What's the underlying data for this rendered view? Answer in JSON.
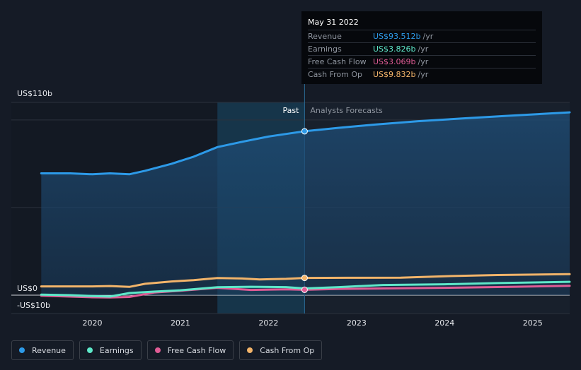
{
  "tooltip": {
    "date": "May 31 2022",
    "rows": [
      {
        "label": "Revenue",
        "value": "US$93.512b",
        "unit": "/yr",
        "color": "#2d9ae8"
      },
      {
        "label": "Earnings",
        "value": "US$3.826b",
        "unit": "/yr",
        "color": "#5ee8c9"
      },
      {
        "label": "Free Cash Flow",
        "value": "US$3.069b",
        "unit": "/yr",
        "color": "#e05c95"
      },
      {
        "label": "Cash From Op",
        "value": "US$9.832b",
        "unit": "/yr",
        "color": "#f2b46a"
      }
    ]
  },
  "legend": [
    {
      "label": "Revenue",
      "color": "#2d9ae8"
    },
    {
      "label": "Earnings",
      "color": "#5ee8c9"
    },
    {
      "label": "Free Cash Flow",
      "color": "#e05c95"
    },
    {
      "label": "Cash From Op",
      "color": "#f2b46a"
    }
  ],
  "chart_data": {
    "type": "line",
    "ylim": [
      -10,
      110
    ],
    "y_tick_labels": [
      {
        "value": 110,
        "label": "US$110b"
      },
      {
        "value": 0,
        "label": "US$0"
      },
      {
        "value": -10,
        "label": "-US$10b"
      }
    ],
    "x_ticks": [
      2020,
      2021,
      2022,
      2023,
      2024,
      2025
    ],
    "xlim": [
      2019.08,
      2025.42
    ],
    "past_label": "Past",
    "forecast_label": "Analysts Forecasts",
    "highlight_start": 2021.42,
    "divider_x": 2022.41,
    "series": [
      {
        "name": "Revenue",
        "color": "#2d9ae8",
        "fill": true,
        "points": [
          [
            2019.42,
            69.5
          ],
          [
            2019.75,
            69.5
          ],
          [
            2020.0,
            69.0
          ],
          [
            2020.2,
            69.5
          ],
          [
            2020.42,
            69.0
          ],
          [
            2020.6,
            71.0
          ],
          [
            2020.9,
            75.0
          ],
          [
            2021.15,
            79.0
          ],
          [
            2021.42,
            84.5
          ],
          [
            2021.7,
            87.5
          ],
          [
            2022.0,
            90.5
          ],
          [
            2022.2,
            92.0
          ],
          [
            2022.41,
            93.512
          ],
          [
            2022.8,
            95.5
          ],
          [
            2023.2,
            97.3
          ],
          [
            2023.7,
            99.3
          ],
          [
            2024.2,
            100.8
          ],
          [
            2024.7,
            102.3
          ],
          [
            2025.42,
            104.3
          ]
        ]
      },
      {
        "name": "Earnings",
        "color": "#5ee8c9",
        "fill": false,
        "points": [
          [
            2019.42,
            0.3
          ],
          [
            2019.75,
            0.0
          ],
          [
            2020.0,
            -0.5
          ],
          [
            2020.2,
            -0.8
          ],
          [
            2020.42,
            1.2
          ],
          [
            2020.7,
            2.0
          ],
          [
            2021.0,
            2.8
          ],
          [
            2021.42,
            4.5
          ],
          [
            2021.8,
            4.8
          ],
          [
            2022.2,
            4.6
          ],
          [
            2022.41,
            3.826
          ],
          [
            2022.8,
            4.6
          ],
          [
            2023.3,
            5.8
          ],
          [
            2024.0,
            6.2
          ],
          [
            2024.6,
            6.9
          ],
          [
            2025.42,
            7.6
          ]
        ]
      },
      {
        "name": "Free Cash Flow",
        "color": "#e05c95",
        "fill": false,
        "points": [
          [
            2019.42,
            -0.3
          ],
          [
            2019.75,
            -0.8
          ],
          [
            2020.0,
            -1.2
          ],
          [
            2020.2,
            -1.3
          ],
          [
            2020.42,
            -1.0
          ],
          [
            2020.7,
            1.5
          ],
          [
            2021.0,
            2.5
          ],
          [
            2021.42,
            4.2
          ],
          [
            2021.8,
            3.0
          ],
          [
            2022.2,
            3.3
          ],
          [
            2022.41,
            3.069
          ],
          [
            2022.8,
            3.6
          ],
          [
            2023.5,
            3.9
          ],
          [
            2024.2,
            4.3
          ],
          [
            2024.8,
            4.8
          ],
          [
            2025.42,
            5.3
          ]
        ]
      },
      {
        "name": "Cash From Op",
        "color": "#f2b46a",
        "fill": false,
        "points": [
          [
            2019.42,
            5.0
          ],
          [
            2019.75,
            5.0
          ],
          [
            2020.0,
            5.0
          ],
          [
            2020.2,
            5.2
          ],
          [
            2020.42,
            4.7
          ],
          [
            2020.6,
            6.5
          ],
          [
            2020.9,
            7.8
          ],
          [
            2021.15,
            8.6
          ],
          [
            2021.42,
            9.8
          ],
          [
            2021.7,
            9.5
          ],
          [
            2021.9,
            9.0
          ],
          [
            2022.2,
            9.3
          ],
          [
            2022.41,
            9.832
          ],
          [
            2022.9,
            9.9
          ],
          [
            2023.5,
            10.0
          ],
          [
            2024.0,
            10.8
          ],
          [
            2024.6,
            11.5
          ],
          [
            2025.42,
            12.0
          ]
        ]
      }
    ]
  }
}
